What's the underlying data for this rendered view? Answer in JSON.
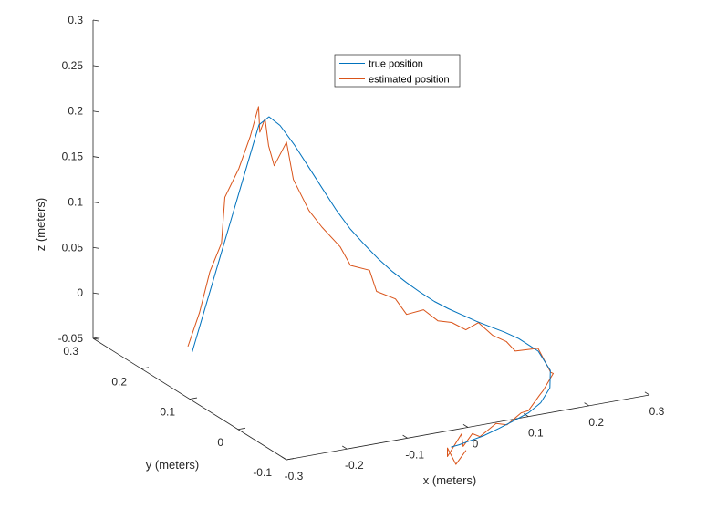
{
  "chart_data": {
    "type": "line",
    "projection": "3d",
    "title": "",
    "xlabel": "x (meters)",
    "ylabel": "y (meters)",
    "zlabel": "z (meters)",
    "xlim": [
      -0.3,
      0.3
    ],
    "ylim": [
      -0.1,
      0.3
    ],
    "zlim": [
      -0.05,
      0.3
    ],
    "x_ticks": [
      "-0.3",
      "-0.2",
      "-0.1",
      "0",
      "0.1",
      "0.2",
      "0.3"
    ],
    "y_ticks": [
      "-0.1",
      "0",
      "0.1",
      "0.2",
      "0.3"
    ],
    "z_ticks": [
      "-0.05",
      "0",
      "0.05",
      "0.1",
      "0.15",
      "0.2",
      "0.25",
      "0.3"
    ],
    "grid": false,
    "legend_position": "top",
    "series": [
      {
        "name": "true position",
        "color": "#0072BD",
        "x": [
          -0.2,
          -0.192,
          -0.184,
          -0.176,
          -0.168,
          -0.16,
          -0.152,
          -0.145,
          -0.13,
          -0.11,
          -0.09,
          -0.07,
          -0.05,
          -0.03,
          -0.01,
          0.01,
          0.03,
          0.05,
          0.07,
          0.09,
          0.11,
          0.13,
          0.15,
          0.17,
          0.19,
          0.21,
          0.228,
          0.232,
          0.22,
          0.196,
          0.17,
          0.14,
          0.11,
          0.08,
          0.055,
          0.035,
          0.02
        ],
        "y": [
          0.22,
          0.207,
          0.194,
          0.181,
          0.168,
          0.155,
          0.142,
          0.13,
          0.126,
          0.122,
          0.118,
          0.114,
          0.11,
          0.106,
          0.102,
          0.098,
          0.094,
          0.09,
          0.086,
          0.082,
          0.078,
          0.074,
          0.07,
          0.066,
          0.062,
          0.058,
          0.04,
          0.02,
          0.006,
          -0.005,
          -0.013,
          -0.02,
          -0.026,
          -0.031,
          -0.035,
          -0.038,
          -0.04
        ],
        "z": [
          -0.05,
          -0.005,
          0.04,
          0.085,
          0.13,
          0.175,
          0.22,
          0.232,
          0.222,
          0.2,
          0.175,
          0.15,
          0.125,
          0.103,
          0.085,
          0.068,
          0.053,
          0.04,
          0.028,
          0.017,
          0.008,
          0.0,
          -0.008,
          -0.015,
          -0.022,
          -0.03,
          -0.04,
          -0.055,
          -0.068,
          -0.078,
          -0.083,
          -0.086,
          -0.089,
          -0.092,
          -0.093,
          -0.094,
          -0.094
        ]
      },
      {
        "name": "estimated position",
        "color": "#D95319",
        "x": [
          -0.204,
          -0.196,
          -0.19,
          -0.182,
          -0.186,
          -0.174,
          -0.168,
          -0.164,
          -0.157,
          -0.15,
          -0.145,
          -0.138,
          -0.124,
          -0.108,
          -0.092,
          -0.072,
          -0.048,
          -0.028,
          -0.006,
          0.012,
          0.032,
          0.052,
          0.072,
          0.094,
          0.112,
          0.134,
          0.15,
          0.172,
          0.188,
          0.206,
          0.226,
          0.234,
          0.224,
          0.214,
          0.192,
          0.172,
          0.15,
          0.13,
          0.104,
          0.082,
          0.06,
          0.048,
          0.034,
          0.022,
          0.006,
          0.014,
          0.028,
          0.04
        ],
        "y": [
          0.224,
          0.21,
          0.196,
          0.182,
          0.17,
          0.156,
          0.14,
          0.128,
          0.134,
          0.132,
          0.131,
          0.128,
          0.12,
          0.126,
          0.114,
          0.112,
          0.104,
          0.108,
          0.096,
          0.104,
          0.09,
          0.092,
          0.082,
          0.08,
          0.074,
          0.072,
          0.066,
          0.064,
          0.056,
          0.06,
          0.038,
          0.022,
          0.004,
          0.012,
          -0.008,
          -0.01,
          -0.022,
          -0.018,
          -0.028,
          -0.022,
          -0.034,
          -0.03,
          -0.044,
          -0.03,
          -0.05,
          -0.054,
          -0.04,
          -0.046
        ],
        "z": [
          -0.045,
          -0.004,
          0.045,
          0.08,
          0.135,
          0.17,
          0.21,
          0.246,
          0.215,
          0.23,
          0.2,
          0.178,
          0.205,
          0.16,
          0.128,
          0.108,
          0.086,
          0.062,
          0.058,
          0.03,
          0.024,
          0.004,
          0.01,
          -0.004,
          -0.006,
          -0.016,
          -0.008,
          -0.024,
          -0.03,
          -0.044,
          -0.036,
          -0.058,
          -0.052,
          -0.072,
          -0.068,
          -0.082,
          -0.078,
          -0.09,
          -0.082,
          -0.096,
          -0.086,
          -0.1,
          -0.08,
          -0.108,
          -0.09,
          -0.104,
          -0.114,
          -0.098
        ]
      }
    ]
  }
}
